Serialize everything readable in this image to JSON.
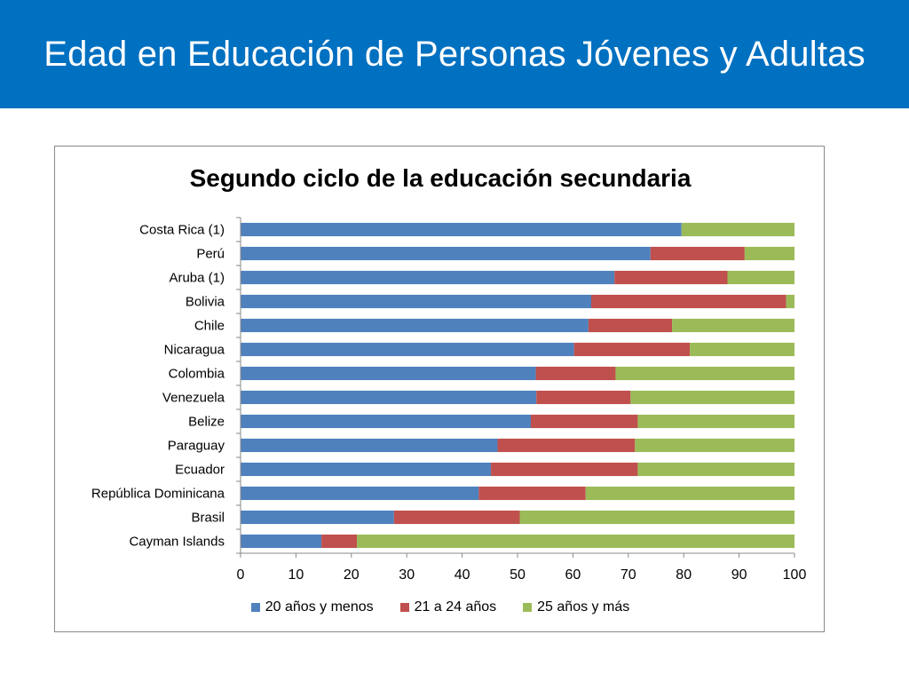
{
  "header": {
    "title": "Edad en Educación de Personas Jóvenes y Adultas"
  },
  "colors": {
    "header_bg": "#0070c0",
    "series1": "#4f81bd",
    "series2": "#c0504d",
    "series3": "#9bbb59"
  },
  "chart_data": {
    "type": "bar",
    "orientation": "horizontal",
    "stacked": true,
    "title": "Segundo ciclo de la educación secundaria",
    "categories": [
      "Costa Rica (1)",
      "Perú",
      "Aruba (1)",
      "Bolivia",
      "Chile",
      "Nicaragua",
      "Colombia",
      "Venezuela",
      "Belize",
      "Paraguay",
      "Ecuador",
      "República Dominicana",
      "Brasil",
      "Cayman Islands"
    ],
    "series": [
      {
        "name": "20 años y menos",
        "values": [
          79.6,
          74,
          67.5,
          63.3,
          62.8,
          60.2,
          53.3,
          53.4,
          52.4,
          46.4,
          45.2,
          43,
          27.7,
          14.6
        ]
      },
      {
        "name": "21 a 24 años",
        "values": [
          0,
          17,
          20.4,
          35.2,
          15.1,
          20.9,
          14.4,
          17,
          19.3,
          24.8,
          26.5,
          19.3,
          22.7,
          6.4
        ]
      },
      {
        "name": "25 años y más",
        "values": [
          20.4,
          9,
          12.1,
          1.5,
          22.1,
          18.9,
          32.3,
          29.6,
          28.3,
          28.8,
          28.3,
          37.7,
          49.6,
          79
        ]
      }
    ],
    "xlim": [
      0,
      100
    ],
    "xticks": [
      0,
      10,
      20,
      30,
      40,
      50,
      60,
      70,
      80,
      90,
      100
    ],
    "grid": false,
    "legend_position": "bottom"
  }
}
